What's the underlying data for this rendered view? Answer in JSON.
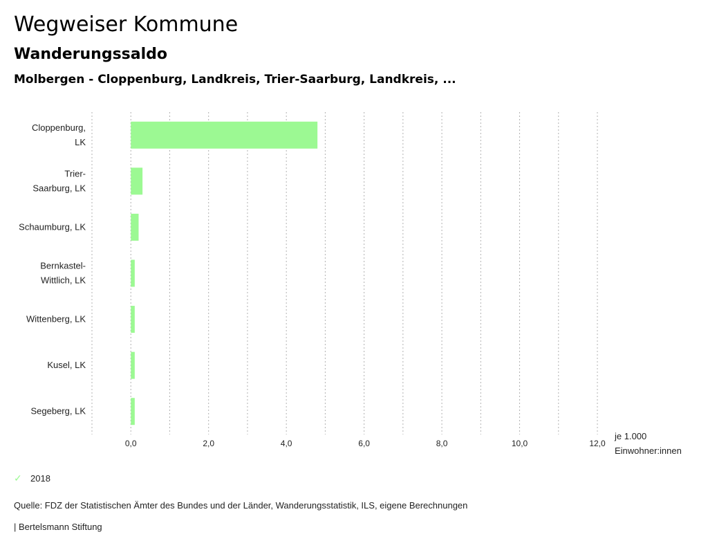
{
  "header": {
    "title": "Wegweiser Kommune",
    "subtitle": "Wanderungssaldo",
    "region": "Molbergen - Cloppenburg, Landkreis, Trier-Saarburg, Landkreis, ..."
  },
  "chart_data": {
    "type": "bar",
    "orientation": "horizontal",
    "categories": [
      [
        "Cloppenburg,",
        "LK"
      ],
      [
        "Trier-",
        "Saarburg, LK"
      ],
      [
        "Schaumburg, LK"
      ],
      [
        "Bernkastel-",
        "Wittlich, LK"
      ],
      [
        "Wittenberg, LK"
      ],
      [
        "Kusel, LK"
      ],
      [
        "Segeberg, LK"
      ]
    ],
    "series": [
      {
        "name": "2018",
        "color": "#9cf993",
        "values": [
          4.8,
          0.3,
          0.2,
          0.1,
          0.1,
          0.1,
          0.1
        ]
      }
    ],
    "xlim": [
      -1,
      12
    ],
    "xticks": [
      0,
      2,
      4,
      6,
      8,
      10,
      12
    ],
    "xtick_labels": [
      "0,0",
      "2,0",
      "4,0",
      "6,0",
      "8,0",
      "10,0",
      "12,0"
    ],
    "xlabel": [
      "je 1.000",
      "Einwohner:innen"
    ],
    "grid": true,
    "legend_position": "bottom-left"
  },
  "legend": {
    "icon": "check-icon",
    "label": "2018"
  },
  "footer": {
    "source": "Quelle: FDZ der Statistischen Ämter des Bundes und der Länder, Wanderungsstatistik, ILS, eigene Berechnungen",
    "credit": "| Bertelsmann Stiftung"
  }
}
